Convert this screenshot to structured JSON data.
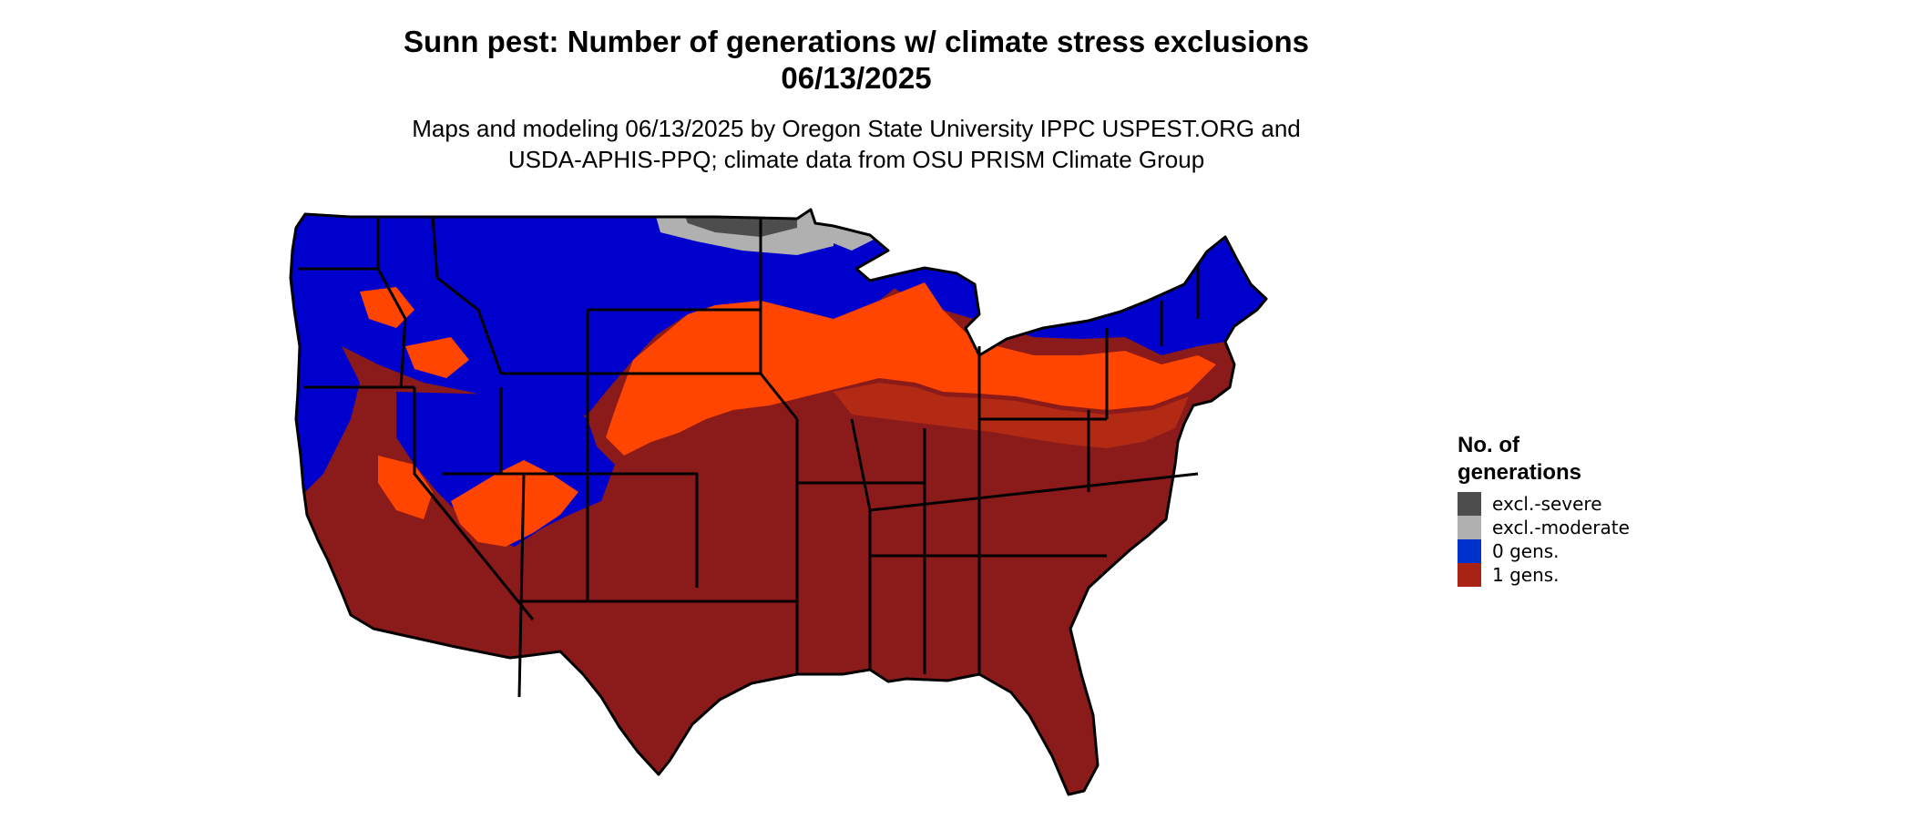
{
  "title": {
    "line1": "Sunn pest: Number of generations w/ climate stress exclusions",
    "line2": "06/13/2025"
  },
  "subtitle": {
    "line1": "Maps and modeling 06/13/2025 by Oregon State University IPPC USPEST.ORG and",
    "line2": "USDA-APHIS-PPQ; climate data from OSU PRISM Climate Group"
  },
  "map": {
    "region": "contiguous-united-states",
    "border_color": "#000000",
    "classes": {
      "excl_severe": "#4d4d4d",
      "excl_moderate": "#b0b0b0",
      "zero_gens": "#0000cc",
      "one_gen_dark": "#8b1a1a",
      "one_gen_mid": "#b22a14",
      "one_gen_bright": "#ff4500"
    }
  },
  "legend": {
    "title_line1": "No. of",
    "title_line2": "generations",
    "items": [
      {
        "label": "excl.-severe",
        "color": "#4d4d4d"
      },
      {
        "label": "excl.-moderate",
        "color": "#b0b0b0"
      },
      {
        "label": "0 gens.",
        "color": "#0033cc"
      },
      {
        "label": "1 gens.",
        "color": "#a82314"
      }
    ]
  }
}
